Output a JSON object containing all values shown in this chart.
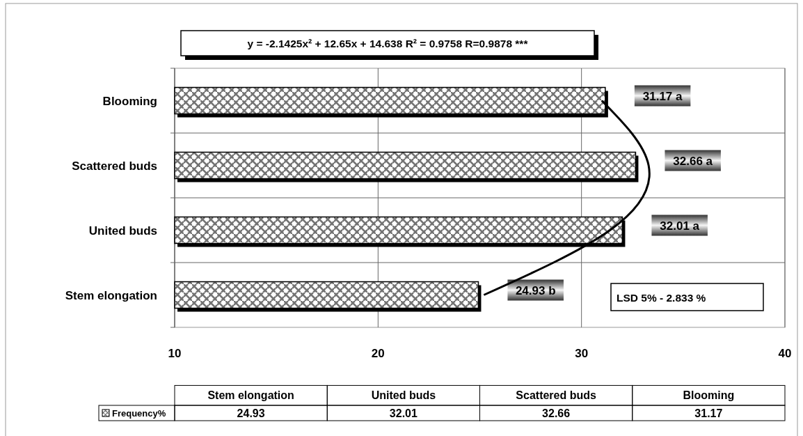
{
  "chart_data": [
    {
      "type": "bar",
      "orientation": "horizontal",
      "categories": [
        "Blooming",
        "Scattered buds",
        "United buds",
        "Stem elongation"
      ],
      "series": [
        {
          "color": "#000000",
          "values": [
            31.17,
            32.66,
            32.01,
            24.93
          ],
          "value_labels": [
            "31.17 a",
            "32.66 a",
            "32.01 a",
            "24.93 b"
          ]
        },
        {
          "type": "line",
          "color": "#000000",
          "values": [
            31.0,
            33.3,
            31.4,
            25.2
          ]
        }
      ],
      "xlim": [
        10,
        40
      ],
      "xticks": [
        10,
        20,
        30,
        40
      ],
      "grid": true,
      "annotations": [
        "y = -2.1425x² + 12.65x + 14.638   R² = 0.9758   R=0.9878 ***",
        "LSD 5% - 2.833 %"
      ]
    },
    {
      "type": "other",
      "categories": [
        "Stem elongation",
        "United buds",
        "Scattered buds",
        "Blooming"
      ],
      "series": [
        {
          "name": "Frequency%",
          "color": "#000000",
          "values": [
            24.93,
            32.01,
            32.66,
            31.17
          ]
        }
      ],
      "data_labels": true
    }
  ]
}
